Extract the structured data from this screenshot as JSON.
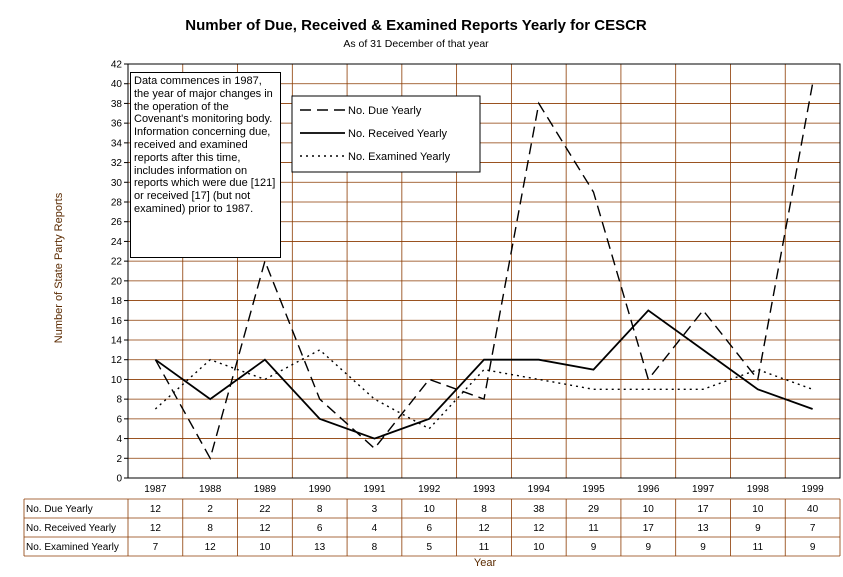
{
  "chart_data": {
    "type": "line",
    "title": "Number of Due, Received & Examined Reports Yearly for CESCR",
    "subtitle": "As of 31 December of that  year",
    "xlabel": "Year",
    "ylabel": "Number of State Party Reports",
    "ylim": [
      0,
      42
    ],
    "y_ticks": [
      "0",
      "2",
      "4",
      "6",
      "8",
      "10",
      "12",
      "14",
      "16",
      "18",
      "20",
      "22",
      "24",
      "26",
      "28",
      "30",
      "32",
      "34",
      "36",
      "38",
      "40",
      "42"
    ],
    "grid": true,
    "legend_position": "top-center",
    "categories": [
      "1987",
      "1988",
      "1989",
      "1990",
      "1991",
      "1992",
      "1993",
      "1994",
      "1995",
      "1996",
      "1997",
      "1998",
      "1999"
    ],
    "series": [
      {
        "name": "No. Due Yearly",
        "style": "dashed",
        "values": [
          12,
          2,
          22,
          8,
          3,
          10,
          8,
          38,
          29,
          10,
          17,
          10,
          40
        ]
      },
      {
        "name": "No. Received Yearly",
        "style": "solid",
        "values": [
          12,
          8,
          12,
          6,
          4,
          6,
          12,
          12,
          11,
          17,
          13,
          9,
          7
        ]
      },
      {
        "name": "No. Examined Yearly",
        "style": "dotted",
        "values": [
          7,
          12,
          10,
          13,
          8,
          5,
          11,
          10,
          9,
          9,
          9,
          11,
          9
        ]
      }
    ],
    "annotation": "Data commences in 1987, the year of major changes in the operation of the Covenant's monitoring body. Information concerning due, received and examined reports after this time, includes information on reports which were due [121] or received [17] (but not examined) prior to 1987.",
    "colors": {
      "gridline": "#8b3a00",
      "line": "#000000",
      "axis_label": "#5a2a00"
    }
  }
}
